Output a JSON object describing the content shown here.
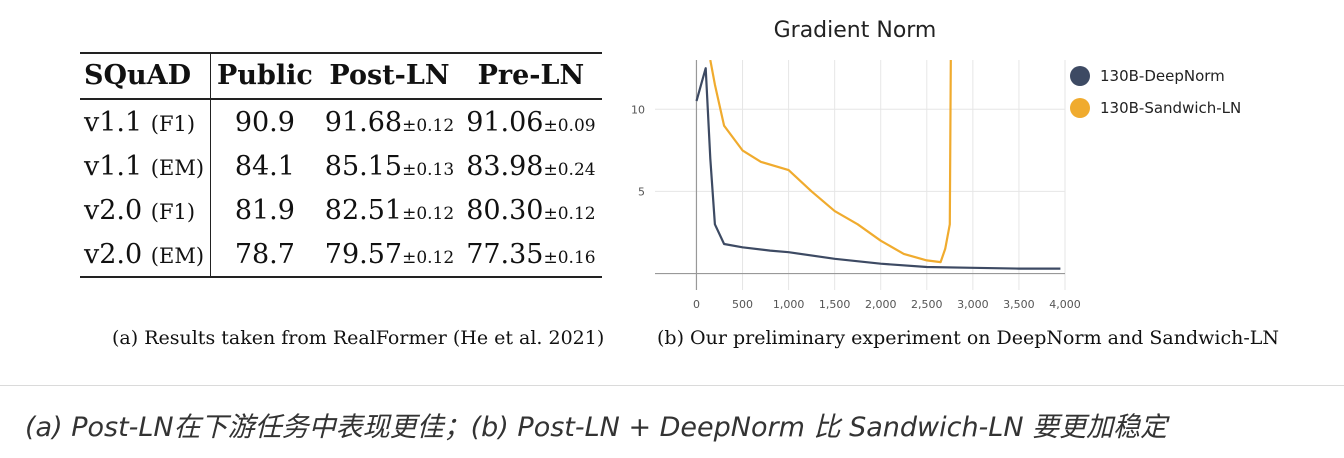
{
  "table": {
    "headers": [
      "SQuAD",
      "Public",
      "Post-LN",
      "Pre-LN"
    ],
    "rows": [
      {
        "version": "v1.1",
        "metric": "(F1)",
        "public": "90.9",
        "post_ln": "91.68",
        "post_ln_pm": "±0.12",
        "pre_ln": "91.06",
        "pre_ln_pm": "±0.09"
      },
      {
        "version": "v1.1",
        "metric": "(EM)",
        "public": "84.1",
        "post_ln": "85.15",
        "post_ln_pm": "±0.13",
        "pre_ln": "83.98",
        "pre_ln_pm": "±0.24"
      },
      {
        "version": "v2.0",
        "metric": "(F1)",
        "public": "81.9",
        "post_ln": "82.51",
        "post_ln_pm": "±0.12",
        "pre_ln": "80.30",
        "pre_ln_pm": "±0.12"
      },
      {
        "version": "v2.0",
        "metric": "(EM)",
        "public": "78.7",
        "post_ln": "79.57",
        "post_ln_pm": "±0.12",
        "pre_ln": "77.35",
        "pre_ln_pm": "±0.16"
      }
    ]
  },
  "captions": {
    "a": "(a) Results taken from RealFormer (He et al. 2021)",
    "b": "(b) Our preliminary experiment on DeepNorm and Sandwich-LN",
    "main": "(a) Post-LN在下游任务中表现更佳；(b) Post-LN + DeepNorm 比 Sandwich-LN 要更加稳定"
  },
  "chart_data": {
    "type": "line",
    "title": "Gradient Norm",
    "xlabel": "",
    "ylabel": "",
    "xlim": [
      -450,
      4000
    ],
    "ylim": [
      -1,
      13
    ],
    "x_ticks": [
      0,
      500,
      1000,
      1500,
      2000,
      2500,
      3000,
      3500,
      4000
    ],
    "x_tick_labels": [
      "0",
      "500",
      "1,000",
      "1,500",
      "2,000",
      "2,500",
      "3,000",
      "3,500",
      "4,000"
    ],
    "y_ticks": [
      5,
      10
    ],
    "y_tick_labels": [
      "5",
      "10"
    ],
    "grid": true,
    "legend_position": "top-right",
    "series": [
      {
        "name": "130B-DeepNorm",
        "color": "#3d4a63",
        "points": [
          [
            0,
            10.5
          ],
          [
            50,
            11.5
          ],
          [
            100,
            12.5
          ],
          [
            150,
            7.0
          ],
          [
            200,
            3.0
          ],
          [
            300,
            1.8
          ],
          [
            500,
            1.6
          ],
          [
            800,
            1.4
          ],
          [
            1000,
            1.3
          ],
          [
            1500,
            0.9
          ],
          [
            2000,
            0.6
          ],
          [
            2500,
            0.4
          ],
          [
            3000,
            0.35
          ],
          [
            3500,
            0.3
          ],
          [
            3950,
            0.3
          ]
        ]
      },
      {
        "name": "130B-Sandwich-LN",
        "color": "#f0ab2e",
        "points": [
          [
            150,
            13.0
          ],
          [
            200,
            11.5
          ],
          [
            300,
            9.0
          ],
          [
            500,
            7.5
          ],
          [
            700,
            6.8
          ],
          [
            1000,
            6.3
          ],
          [
            1250,
            5.0
          ],
          [
            1500,
            3.8
          ],
          [
            1750,
            3.0
          ],
          [
            2000,
            2.0
          ],
          [
            2250,
            1.2
          ],
          [
            2500,
            0.8
          ],
          [
            2650,
            0.7
          ],
          [
            2700,
            1.5
          ],
          [
            2750,
            3.0
          ],
          [
            2760,
            13.0
          ]
        ]
      }
    ]
  }
}
